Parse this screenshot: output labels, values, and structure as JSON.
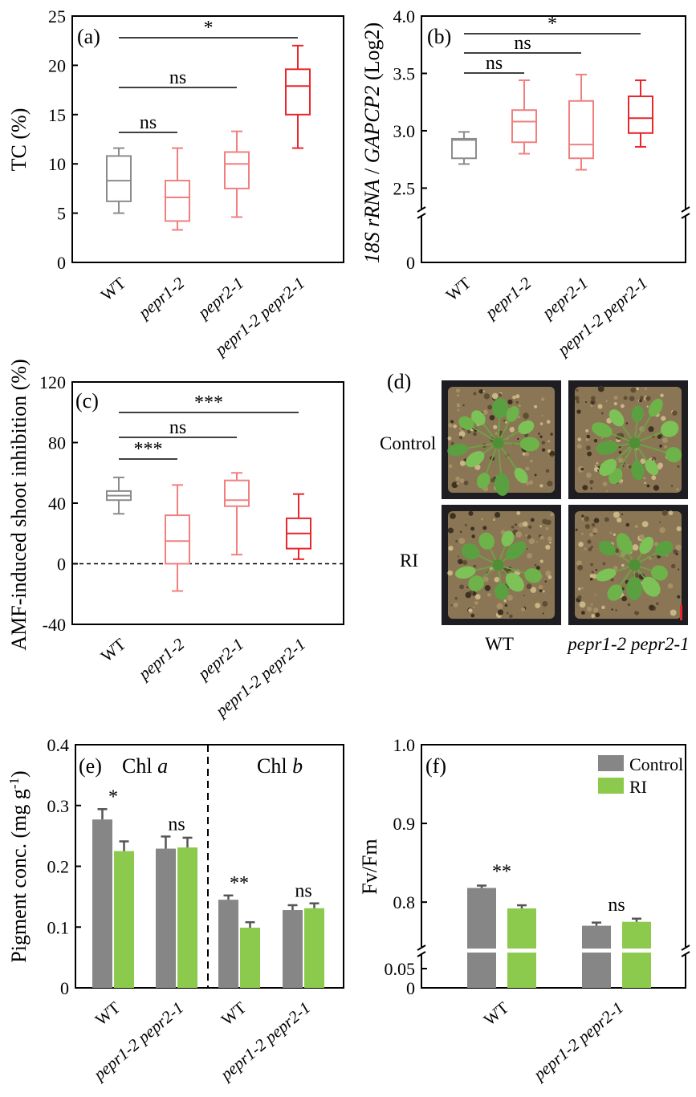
{
  "panels": {
    "a": {
      "label": "(a)",
      "ylabel": "TC (%)",
      "ylim": [
        0,
        25
      ],
      "yticks": [
        "0",
        "5",
        "10",
        "15",
        "20",
        "25"
      ],
      "categories": [
        "WT",
        "pepr1-2",
        "pepr2-1",
        "pepr1-2 pepr2-1"
      ],
      "colors": [
        "#8c8c8c",
        "#f08080",
        "#f08080",
        "#e8262b"
      ],
      "boxes": [
        {
          "min": 5.0,
          "q1": 6.2,
          "median": 8.3,
          "q3": 10.8,
          "max": 11.6
        },
        {
          "min": 3.3,
          "q1": 4.2,
          "median": 6.6,
          "q3": 8.3,
          "max": 11.6
        },
        {
          "min": 4.6,
          "q1": 7.5,
          "median": 10.0,
          "q3": 11.2,
          "max": 13.3
        },
        {
          "min": 11.6,
          "q1": 15.0,
          "median": 17.9,
          "q3": 19.6,
          "max": 22.0
        }
      ],
      "comparisons": [
        {
          "from": 0,
          "to": 1,
          "label": "ns"
        },
        {
          "from": 0,
          "to": 2,
          "label": "ns"
        },
        {
          "from": 0,
          "to": 3,
          "label": "*"
        }
      ]
    },
    "b": {
      "label": "(b)",
      "ylabel_italic_1": "18S rRNA",
      "ylabel_sep": " / ",
      "ylabel_italic_2": "GAPCP2",
      "ylabel_suffix": " (Log2)",
      "yticks": [
        "0",
        "2.5",
        "3.0",
        "3.5",
        "4.0"
      ],
      "ylim_upper": [
        2.3,
        4.0
      ],
      "axis_break": true,
      "categories": [
        "WT",
        "pepr1-2",
        "pepr2-1",
        "pepr1-2 pepr2-1"
      ],
      "colors": [
        "#8c8c8c",
        "#f08080",
        "#f08080",
        "#e8262b"
      ],
      "boxes": [
        {
          "min": 2.71,
          "q1": 2.76,
          "median": 2.92,
          "q3": 2.93,
          "max": 2.99
        },
        {
          "min": 2.8,
          "q1": 2.9,
          "median": 3.08,
          "q3": 3.18,
          "max": 3.44
        },
        {
          "min": 2.66,
          "q1": 2.76,
          "median": 2.88,
          "q3": 3.26,
          "max": 3.49
        },
        {
          "min": 2.86,
          "q1": 2.98,
          "median": 3.11,
          "q3": 3.3,
          "max": 3.44
        }
      ],
      "comparisons": [
        {
          "from": 0,
          "to": 1,
          "label": "ns"
        },
        {
          "from": 0,
          "to": 2,
          "label": "ns"
        },
        {
          "from": 0,
          "to": 3,
          "label": "*"
        }
      ]
    },
    "c": {
      "label": "(c)",
      "ylabel": "AMF-induced shoot inhibition (%)",
      "ylim": [
        -40,
        120
      ],
      "yticks": [
        "-40",
        "0",
        "40",
        "80",
        "120"
      ],
      "categories": [
        "WT",
        "pepr1-2",
        "pepr2-1",
        "pepr1-2 pepr2-1"
      ],
      "colors": [
        "#8c8c8c",
        "#f08080",
        "#f08080",
        "#e8262b"
      ],
      "boxes": [
        {
          "min": 33,
          "q1": 42,
          "median": 45,
          "q3": 48,
          "max": 57
        },
        {
          "min": -18,
          "q1": 0,
          "median": 15,
          "q3": 32,
          "max": 52
        },
        {
          "min": 6,
          "q1": 38,
          "median": 42,
          "q3": 55,
          "max": 60
        },
        {
          "min": 3,
          "q1": 10,
          "median": 20,
          "q3": 30,
          "max": 46
        }
      ],
      "comparisons": [
        {
          "from": 0,
          "to": 1,
          "label": "***"
        },
        {
          "from": 0,
          "to": 2,
          "label": "ns"
        },
        {
          "from": 0,
          "to": 3,
          "label": "***"
        }
      ]
    },
    "d": {
      "label": "(d)",
      "rows": [
        "Control",
        "RI"
      ],
      "cols": [
        "WT",
        "pepr1-2 pepr2-1"
      ]
    },
    "e": {
      "label": "(e)",
      "ylabel": "Pigment conc. (mg g",
      "ylabel_sup": "-1",
      "ylabel_end": ")",
      "ylim": [
        0,
        0.4
      ],
      "yticks": [
        "0",
        "0.1",
        "0.2",
        "0.3",
        "0.4"
      ],
      "group1_prefix": "Chl ",
      "group1_var": "a",
      "group2_prefix": "Chl ",
      "group2_var": "b",
      "categories": [
        "WT",
        "pepr1-2 pepr2-1",
        "WT",
        "pepr1-2 pepr2-1"
      ],
      "control": [
        0.277,
        0.229,
        0.145,
        0.128
      ],
      "control_err": [
        0.017,
        0.02,
        0.007,
        0.008
      ],
      "ri": [
        0.225,
        0.231,
        0.099,
        0.131
      ],
      "ri_err": [
        0.016,
        0.016,
        0.009,
        0.008
      ],
      "sig": [
        "*",
        "ns",
        "**",
        "ns"
      ]
    },
    "f": {
      "label": "(f)",
      "ylabel": "Fv/Fm",
      "yticks": [
        "0",
        "0.05",
        "0.8",
        "0.9",
        "1.0"
      ],
      "ylim_upper": [
        0.74,
        1.0
      ],
      "axis_break": true,
      "categories": [
        "WT",
        "pepr1-2 pepr2-1"
      ],
      "control": [
        0.818,
        0.77
      ],
      "control_err": [
        0.003,
        0.004
      ],
      "ri": [
        0.792,
        0.775
      ],
      "ri_err": [
        0.004,
        0.004
      ],
      "sig": [
        "**",
        "ns"
      ],
      "legend": [
        "Control",
        "RI"
      ]
    }
  },
  "colors": {
    "control": "#868686",
    "ri": "#8cca4e",
    "wt_box": "#8c8c8c",
    "single_box": "#f08080",
    "double_box": "#e8262b"
  }
}
